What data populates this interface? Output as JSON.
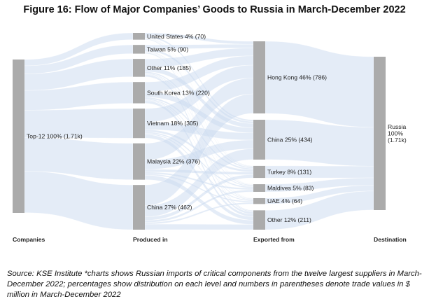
{
  "title": "Figure 16: Flow of Major Companies’ Goods to Russia in March-December 2022",
  "source": "Source: KSE Institute *charts shows Russian imports of critical components from the twelve largest suppliers in March-December 2022; percentages show distribution on each level and numbers in parentheses denote trade values in $ million in March-December 2022",
  "chart_data": {
    "type": "sankey",
    "units": "$ million",
    "stages": [
      "Companies",
      "Produced in",
      "Exported from",
      "Destination"
    ],
    "nodes": [
      {
        "id": "top12",
        "stage": 0,
        "label": "Top-12 100% (1.71k)",
        "value": 1710
      },
      {
        "id": "us",
        "stage": 1,
        "label": "United States 4% (70)",
        "value": 70
      },
      {
        "id": "tw",
        "stage": 1,
        "label": "Taiwan 5% (90)",
        "value": 90
      },
      {
        "id": "other1",
        "stage": 1,
        "label": "Other 11% (185)",
        "value": 185
      },
      {
        "id": "kr",
        "stage": 1,
        "label": "South Korea 13% (220)",
        "value": 220
      },
      {
        "id": "vn",
        "stage": 1,
        "label": "Vietnam 18% (305)",
        "value": 305
      },
      {
        "id": "my",
        "stage": 1,
        "label": "Malaysia 22% (376)",
        "value": 376
      },
      {
        "id": "cn1",
        "stage": 1,
        "label": "China 27% (462)",
        "value": 462
      },
      {
        "id": "hk",
        "stage": 2,
        "label": "Hong Kong 46% (786)",
        "value": 786
      },
      {
        "id": "cn2",
        "stage": 2,
        "label": "China 25% (434)",
        "value": 434
      },
      {
        "id": "tr",
        "stage": 2,
        "label": "Turkey 8% (131)",
        "value": 131
      },
      {
        "id": "mv",
        "stage": 2,
        "label": "Maldives 5% (83)",
        "value": 83
      },
      {
        "id": "uae",
        "stage": 2,
        "label": "UAE 4% (64)",
        "value": 64
      },
      {
        "id": "other2",
        "stage": 2,
        "label": "Other 12% (211)",
        "value": 211
      },
      {
        "id": "ru",
        "stage": 3,
        "label": "Russia\n100%\n(1.71k)",
        "value": 1710
      }
    ]
  }
}
